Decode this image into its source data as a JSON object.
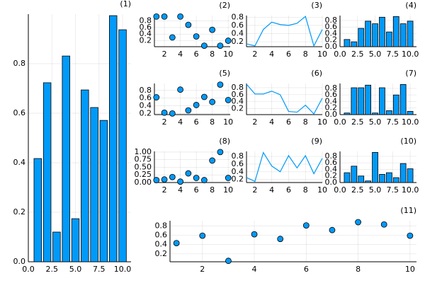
{
  "chart_data": [
    {
      "type": "bar",
      "title": "(1)",
      "color": "#009af9",
      "grid": true,
      "x": [
        1,
        2,
        3,
        4,
        5,
        6,
        7,
        8,
        9,
        10
      ],
      "values": [
        0.417,
        0.723,
        0.12,
        0.831,
        0.174,
        0.694,
        0.623,
        0.571,
        0.994,
        0.937
      ],
      "xlim": [
        0,
        10.9
      ],
      "ylim": [
        0,
        1.0
      ],
      "xticks": [
        {
          "value": 0,
          "label": "0.0"
        },
        2.5,
        {
          "value": 5,
          "label": "5.0"
        },
        7.5,
        {
          "value": 10,
          "label": "10.0"
        }
      ],
      "yticks": [
        {
          "value": 0,
          "label": "0.0"
        },
        0.2,
        0.4,
        0.6,
        0.8
      ]
    },
    {
      "type": "scatter",
      "title": "(2)",
      "color": "#009af9",
      "grid": true,
      "x": [
        1,
        2,
        3,
        4,
        5,
        6,
        7,
        8,
        9,
        10
      ],
      "values": [
        0.93,
        0.93,
        0.3,
        0.93,
        0.68,
        0.33,
        0.05,
        0.53,
        0.05,
        0.2
      ],
      "xlim": [
        0.75,
        10.25
      ],
      "ylim": [
        0.02,
        0.96
      ],
      "xticks": [
        2,
        4,
        6,
        8,
        10
      ],
      "yticks": [
        0.2,
        0.4,
        0.6,
        0.8
      ]
    },
    {
      "type": "line",
      "title": "(3)",
      "color": "#009af9",
      "grid": true,
      "x": [
        1,
        2,
        3,
        4,
        5,
        6,
        7,
        8,
        9,
        10
      ],
      "values": [
        0.15,
        0.1,
        0.5,
        0.68,
        0.62,
        0.6,
        0.65,
        0.82,
        0.1,
        0.5
      ],
      "xlim": [
        1,
        10
      ],
      "ylim": [
        0.08,
        0.84
      ],
      "xticks": [
        2,
        4,
        6,
        8,
        10
      ],
      "yticks": [
        0.2,
        0.4,
        0.6,
        0.8
      ]
    },
    {
      "type": "bar",
      "title": "(4)",
      "color": "#009af9",
      "grid": true,
      "x": [
        1,
        2,
        3,
        4,
        5,
        6,
        7,
        8,
        9,
        10
      ],
      "values": [
        0.22,
        0.15,
        0.56,
        0.78,
        0.7,
        0.9,
        0.45,
        0.92,
        0.7,
        0.78
      ],
      "xlim": [
        0,
        10.9
      ],
      "ylim": [
        0,
        0.95
      ],
      "xticks": [
        {
          "value": 0,
          "label": "0.0"
        },
        2.5,
        {
          "value": 5,
          "label": "5.0"
        },
        7.5,
        {
          "value": 10,
          "label": "10.0"
        }
      ],
      "yticks": [
        {
          "value": 0,
          "label": "0.0"
        },
        0.2,
        0.4,
        0.6,
        0.8
      ]
    },
    {
      "type": "scatter",
      "title": "(5)",
      "color": "#009af9",
      "grid": true,
      "x": [
        1,
        2,
        3,
        4,
        5,
        6,
        7,
        8,
        9,
        10
      ],
      "values": [
        0.62,
        0.22,
        0.2,
        0.82,
        0.28,
        0.42,
        0.63,
        0.5,
        0.95,
        0.55
      ],
      "xlim": [
        0.75,
        10.25
      ],
      "ylim": [
        0.17,
        0.98
      ],
      "xticks": [
        2,
        4,
        6,
        8,
        10
      ],
      "yticks": [
        0.2,
        0.4,
        0.6,
        0.8
      ]
    },
    {
      "type": "line",
      "title": "(6)",
      "color": "#009af9",
      "grid": true,
      "x": [
        1,
        2,
        3,
        4,
        5,
        6,
        7,
        8,
        9,
        10
      ],
      "values": [
        0.9,
        0.62,
        0.62,
        0.7,
        0.6,
        0.12,
        0.1,
        0.3,
        0.05,
        0.5
      ],
      "xlim": [
        1,
        10
      ],
      "ylim": [
        0.03,
        0.92
      ],
      "xticks": [
        2,
        4,
        6,
        8,
        10
      ],
      "yticks": [
        0.2,
        0.4,
        0.6,
        0.8
      ]
    },
    {
      "type": "bar",
      "title": "(7)",
      "color": "#009af9",
      "grid": true,
      "x": [
        1,
        2,
        3,
        4,
        5,
        6,
        7,
        8,
        9,
        10
      ],
      "values": [
        0.05,
        0.82,
        0.82,
        0.9,
        0.05,
        0.82,
        0.12,
        0.6,
        0.92,
        0.1
      ],
      "xlim": [
        0,
        10.9
      ],
      "ylim": [
        0,
        0.95
      ],
      "xticks": [
        {
          "value": 0,
          "label": "0.0"
        },
        2.5,
        {
          "value": 5,
          "label": "5.0"
        },
        7.5,
        {
          "value": 10,
          "label": "10.0"
        }
      ],
      "yticks": [
        {
          "value": 0,
          "label": "0.0"
        },
        0.2,
        0.4,
        0.6,
        0.8
      ]
    },
    {
      "type": "scatter",
      "title": "(8)",
      "color": "#009af9",
      "grid": true,
      "x": [
        1,
        2,
        3,
        4,
        5,
        6,
        7,
        8,
        9,
        10
      ],
      "values": [
        0.08,
        0.1,
        0.18,
        0.03,
        0.3,
        0.15,
        0.08,
        0.72,
        1.0,
        0.15
      ],
      "xlim": [
        0.75,
        10.25
      ],
      "ylim": [
        0,
        1.02
      ],
      "xticks": [
        2,
        4,
        6,
        8,
        10
      ],
      "yticks": [
        {
          "value": 0,
          "label": "0.00"
        },
        0.25,
        {
          "value": 0.5,
          "label": "0.50"
        },
        0.75,
        {
          "value": 1,
          "label": "1.00"
        }
      ]
    },
    {
      "type": "line",
      "title": "(9)",
      "color": "#009af9",
      "grid": true,
      "x": [
        1,
        2,
        3,
        4,
        5,
        6,
        7,
        8,
        9,
        10
      ],
      "values": [
        0.25,
        0.15,
        0.9,
        0.55,
        0.4,
        0.82,
        0.5,
        0.82,
        0.35,
        0.75
      ],
      "xlim": [
        1,
        10
      ],
      "ylim": [
        0.12,
        0.93
      ],
      "xticks": [
        2,
        4,
        6,
        8,
        10
      ],
      "yticks": [
        0.2,
        0.4,
        0.6,
        0.8
      ]
    },
    {
      "type": "bar",
      "title": "(10)",
      "color": "#009af9",
      "grid": true,
      "x": [
        1,
        2,
        3,
        4,
        5,
        6,
        7,
        8,
        9,
        10
      ],
      "values": [
        0.3,
        0.5,
        0.2,
        0.05,
        0.92,
        0.25,
        0.3,
        0.15,
        0.58,
        0.42
      ],
      "xlim": [
        0,
        10.9
      ],
      "ylim": [
        0,
        0.95
      ],
      "xticks": [
        {
          "value": 0,
          "label": "0.0"
        },
        2.5,
        {
          "value": 5,
          "label": "5.0"
        },
        7.5,
        {
          "value": 10,
          "label": "10.0"
        }
      ],
      "yticks": [
        {
          "value": 0,
          "label": "0.0"
        },
        0.2,
        0.4,
        0.6,
        0.8
      ]
    },
    {
      "type": "scatter",
      "title": "(11)",
      "color": "#009af9",
      "grid": true,
      "x": [
        1,
        2,
        3,
        4,
        5,
        6,
        7,
        8,
        9,
        10
      ],
      "values": [
        0.43,
        0.59,
        0.05,
        0.62,
        0.52,
        0.81,
        0.71,
        0.88,
        0.83,
        0.59
      ],
      "xlim": [
        0.75,
        10.25
      ],
      "ylim": [
        0.03,
        0.91
      ],
      "xticks": [
        2,
        4,
        6,
        8,
        10
      ],
      "yticks": [
        0.2,
        0.4,
        0.6,
        0.8
      ]
    }
  ]
}
